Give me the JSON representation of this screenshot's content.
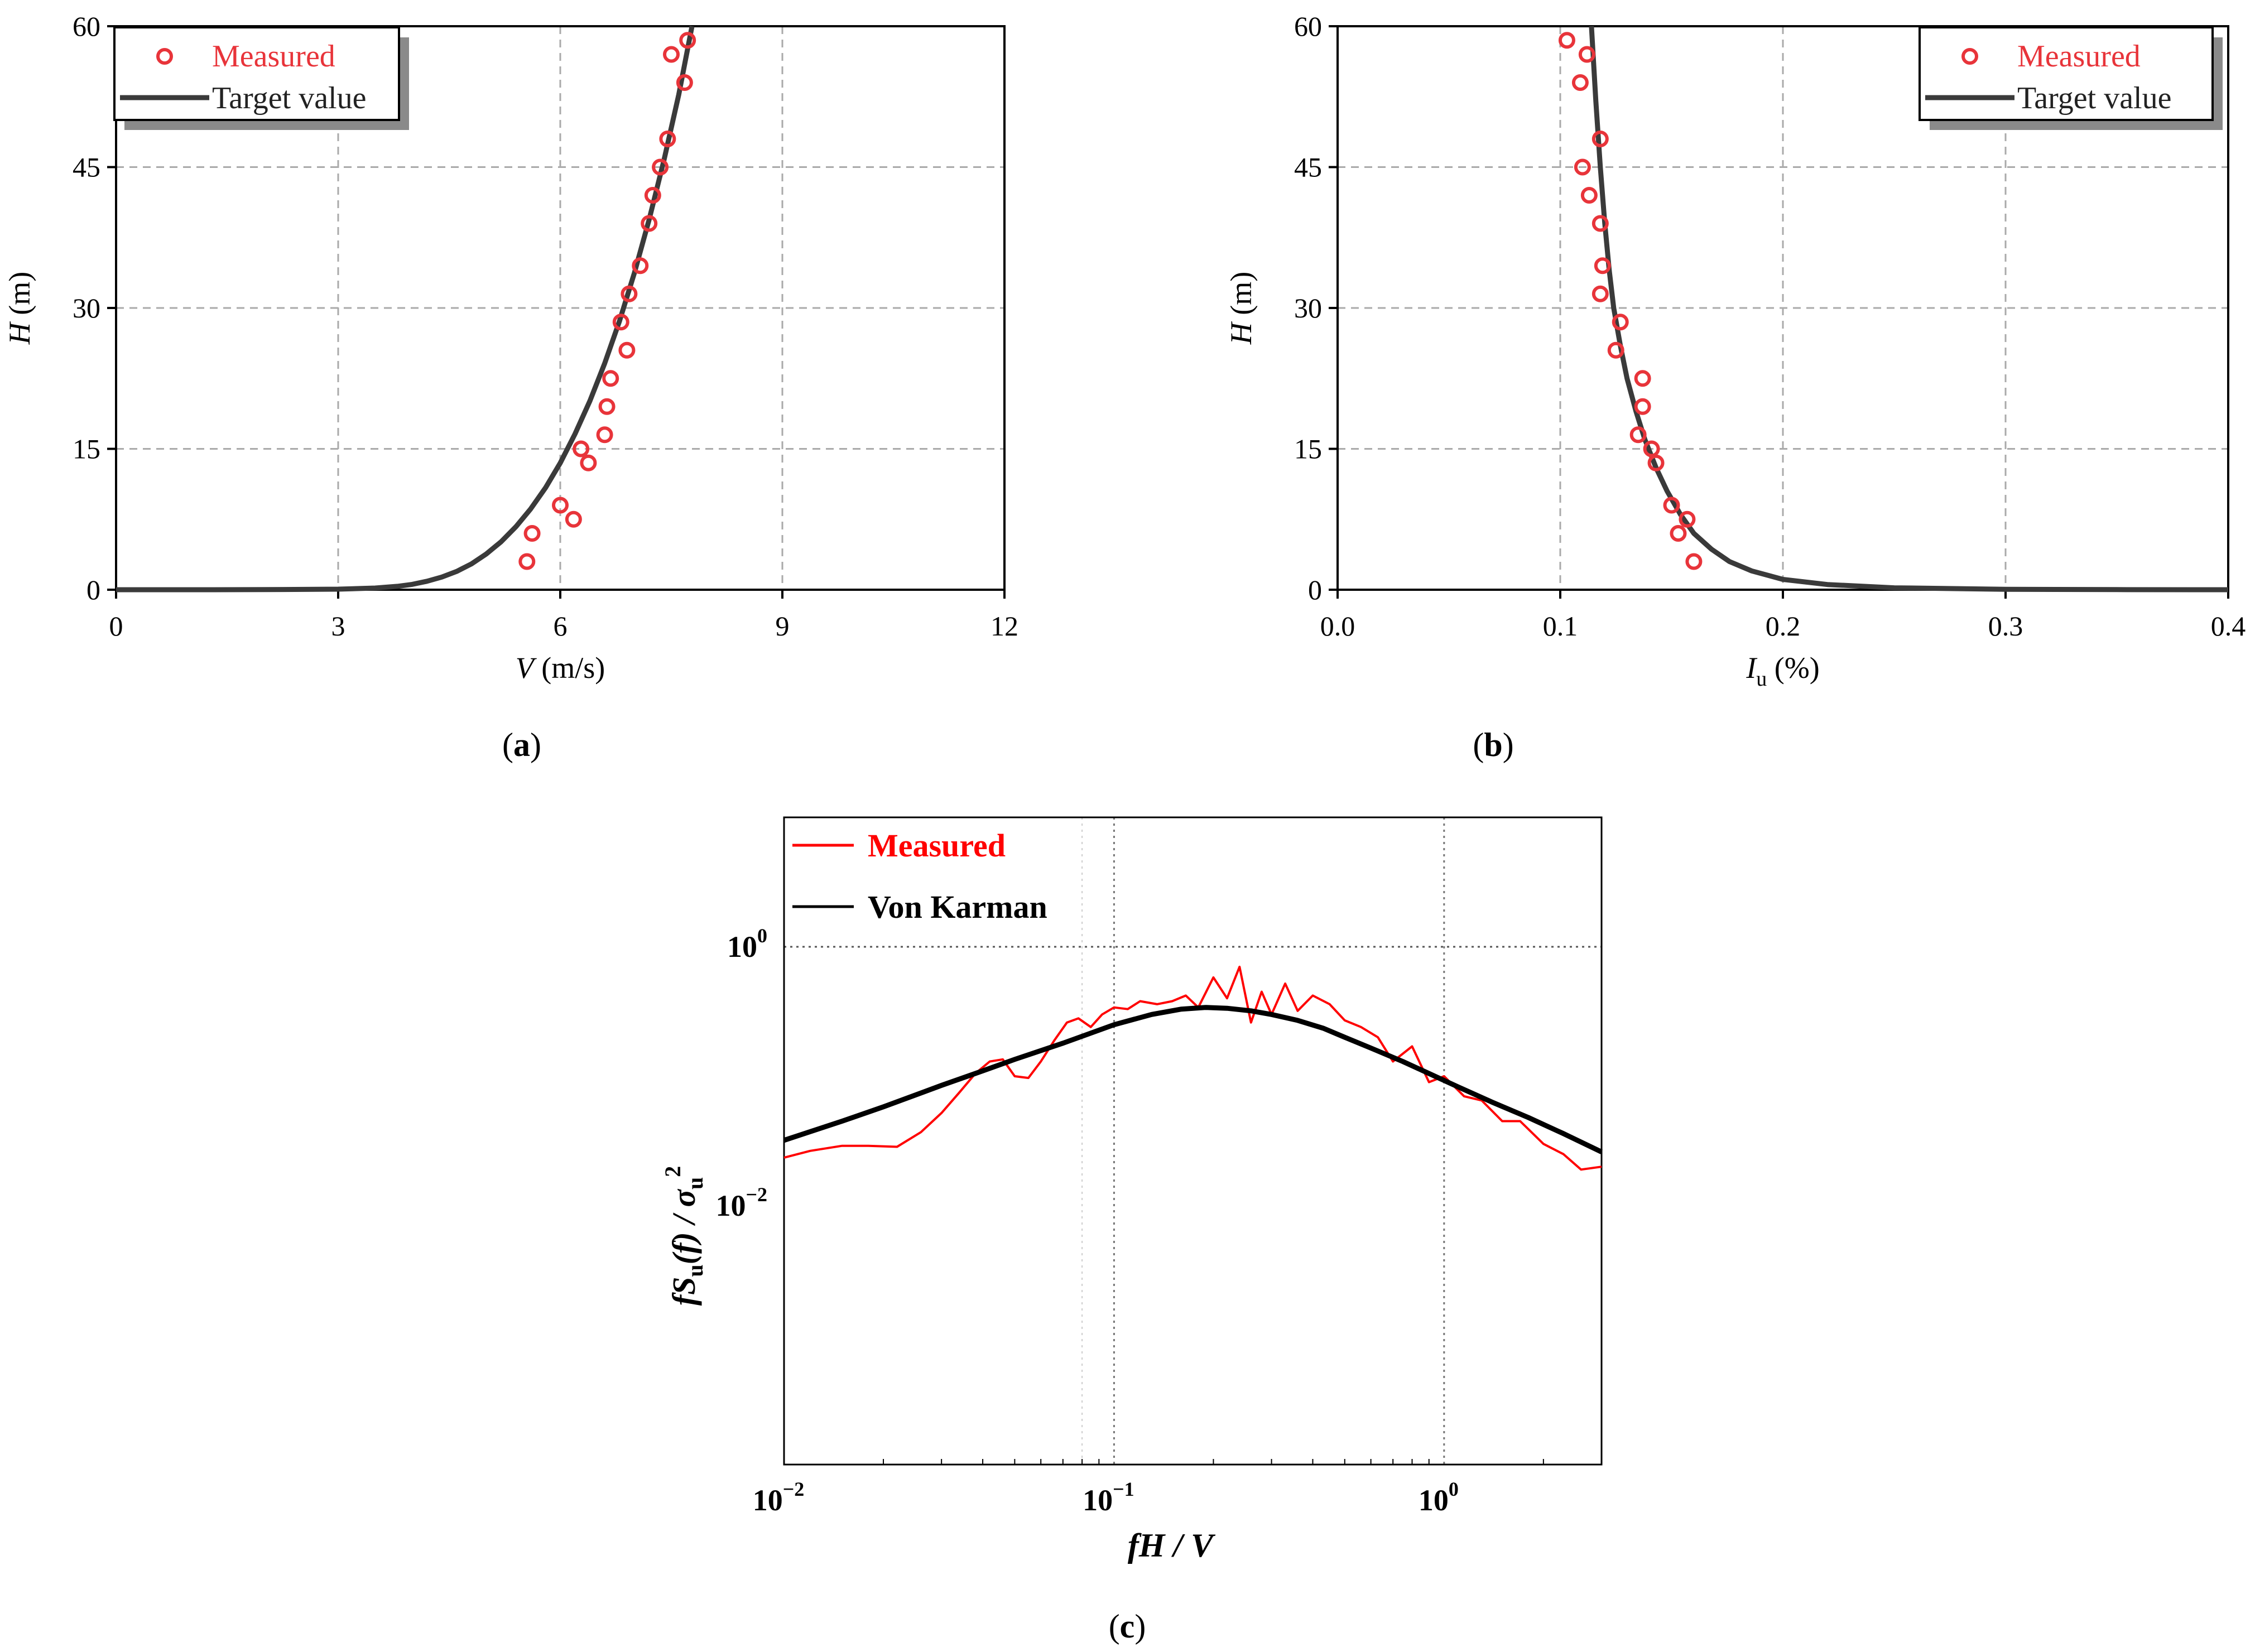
{
  "colors": {
    "measured": "#e8343a",
    "target": "#3a3a3a",
    "measured_c": "#ff0000",
    "karman": "#000000",
    "grid": "#aaaaaa"
  },
  "chart_data": [
    {
      "id": "a",
      "type": "scatter",
      "caption": "a",
      "xlabel_main": "V",
      "xlabel_rest": " (m/s)",
      "ylabel_main": "H",
      "ylabel_rest": " (m)",
      "xlim": [
        0,
        12
      ],
      "ylim": [
        0,
        60
      ],
      "xticks": [
        0,
        3,
        6,
        9,
        12
      ],
      "xtick_labels": [
        "0",
        "3",
        "6",
        "9",
        "12"
      ],
      "yticks": [
        0,
        15,
        30,
        45,
        60
      ],
      "ytick_labels": [
        "0",
        "15",
        "30",
        "45",
        "60"
      ],
      "grid": true,
      "legend": [
        "Measured",
        "Target value"
      ],
      "legend_position": "top-left",
      "series": [
        {
          "name": "Measured",
          "kind": "markers",
          "x": [
            5.55,
            5.62,
            6.0,
            6.18,
            6.28,
            6.38,
            6.6,
            6.63,
            6.68,
            6.82,
            6.9,
            6.93,
            7.08,
            7.2,
            7.25,
            7.35,
            7.45,
            7.5,
            7.68,
            7.72
          ],
          "y": [
            3.0,
            6.0,
            9.0,
            7.5,
            15.0,
            13.5,
            16.5,
            19.5,
            22.5,
            28.5,
            25.5,
            31.5,
            34.5,
            39.0,
            42.0,
            45.0,
            48.0,
            57.0,
            54.0,
            58.5
          ]
        },
        {
          "name": "Target value",
          "kind": "line",
          "x": [
            0.0,
            1.0,
            2.0,
            3.0,
            3.5,
            3.8,
            4.0,
            4.2,
            4.4,
            4.6,
            4.8,
            5.0,
            5.2,
            5.4,
            5.6,
            5.8,
            6.0,
            6.2,
            6.4,
            6.6,
            6.8,
            7.0,
            7.2,
            7.4,
            7.6,
            7.78
          ],
          "y": [
            0.0,
            0.0,
            0.01,
            0.06,
            0.18,
            0.36,
            0.57,
            0.9,
            1.35,
            1.95,
            2.75,
            3.8,
            5.1,
            6.7,
            8.6,
            10.85,
            13.5,
            16.6,
            20.1,
            24.1,
            28.6,
            33.7,
            39.4,
            45.7,
            52.7,
            60.0
          ]
        }
      ]
    },
    {
      "id": "b",
      "type": "scatter",
      "caption": "b",
      "xlabel_main": "I",
      "xlabel_sub": "u",
      "xlabel_rest": " (%)",
      "ylabel_main": "H",
      "ylabel_rest": " (m)",
      "xlim": [
        0.0,
        0.4
      ],
      "ylim": [
        0,
        60
      ],
      "xticks": [
        0.0,
        0.1,
        0.2,
        0.3,
        0.4
      ],
      "xtick_labels": [
        "0.0",
        "0.1",
        "0.2",
        "0.3",
        "0.4"
      ],
      "yticks": [
        0,
        15,
        30,
        45,
        60
      ],
      "ytick_labels": [
        "0",
        "15",
        "30",
        "45",
        "60"
      ],
      "grid": true,
      "legend": [
        "Measured",
        "Target value"
      ],
      "legend_position": "top-right",
      "series": [
        {
          "name": "Measured",
          "kind": "markers",
          "x": [
            0.103,
            0.112,
            0.109,
            0.118,
            0.11,
            0.113,
            0.118,
            0.119,
            0.118,
            0.127,
            0.125,
            0.137,
            0.137,
            0.135,
            0.141,
            0.143,
            0.15,
            0.157,
            0.153,
            0.16
          ],
          "y": [
            58.5,
            57.0,
            54.0,
            48.0,
            45.0,
            42.0,
            39.0,
            34.5,
            31.5,
            28.5,
            25.5,
            22.5,
            19.5,
            16.5,
            15.0,
            13.5,
            9.0,
            7.5,
            6.0,
            3.0
          ]
        },
        {
          "name": "Target value",
          "kind": "line",
          "x": [
            0.114,
            0.116,
            0.118,
            0.12,
            0.122,
            0.124,
            0.127,
            0.13,
            0.134,
            0.138,
            0.143,
            0.148,
            0.154,
            0.16,
            0.168,
            0.176,
            0.186,
            0.2,
            0.22,
            0.25,
            0.3,
            0.35,
            0.4
          ],
          "y": [
            60.0,
            52.0,
            45.0,
            39.0,
            34.0,
            30.0,
            26.0,
            22.5,
            19.0,
            16.0,
            13.0,
            10.5,
            8.0,
            6.0,
            4.3,
            3.0,
            2.0,
            1.1,
            0.55,
            0.2,
            0.05,
            0.01,
            0.0
          ]
        }
      ]
    },
    {
      "id": "c",
      "type": "line",
      "caption": "c",
      "xlabel": "fH / V",
      "ylabel_parts": [
        "fS",
        "u",
        "(f) / σ",
        "u",
        "2"
      ],
      "xscale": "log",
      "yscale": "log",
      "xlim": [
        0.01,
        3.0
      ],
      "ylim": [
        0.0001,
        10.0
      ],
      "xticks_exp": [
        -2,
        -1,
        0
      ],
      "xtick_base": [
        "10",
        "10",
        "10"
      ],
      "xtick_exponent_labels": [
        "−2",
        "−1",
        "0"
      ],
      "yticks_exp": [
        -2,
        0
      ],
      "ytick_base": [
        "10",
        "10"
      ],
      "ytick_exponent_labels": [
        "−2",
        "0"
      ],
      "grid": true,
      "legend": [
        "Measured",
        "Von Karman"
      ],
      "legend_position": "top-left",
      "series": [
        {
          "name": "Measured",
          "kind": "line",
          "x": [
            0.01,
            0.012,
            0.015,
            0.018,
            0.022,
            0.026,
            0.03,
            0.034,
            0.038,
            0.042,
            0.046,
            0.05,
            0.055,
            0.06,
            0.066,
            0.072,
            0.078,
            0.085,
            0.092,
            0.1,
            0.11,
            0.12,
            0.135,
            0.15,
            0.165,
            0.18,
            0.2,
            0.22,
            0.24,
            0.26,
            0.28,
            0.3,
            0.33,
            0.36,
            0.4,
            0.45,
            0.5,
            0.56,
            0.63,
            0.7,
            0.8,
            0.9,
            1.0,
            1.15,
            1.3,
            1.5,
            1.7,
            2.0,
            2.3,
            2.6,
            3.0
          ],
          "y": [
            0.0235,
            0.0265,
            0.029,
            0.029,
            0.0285,
            0.037,
            0.052,
            0.075,
            0.105,
            0.13,
            0.135,
            0.1,
            0.097,
            0.13,
            0.19,
            0.26,
            0.28,
            0.24,
            0.3,
            0.34,
            0.33,
            0.38,
            0.36,
            0.38,
            0.42,
            0.34,
            0.58,
            0.4,
            0.7,
            0.26,
            0.45,
            0.3,
            0.52,
            0.32,
            0.42,
            0.36,
            0.27,
            0.24,
            0.2,
            0.13,
            0.17,
            0.09,
            0.1,
            0.07,
            0.065,
            0.045,
            0.045,
            0.03,
            0.025,
            0.019,
            0.02
          ]
        },
        {
          "name": "Von Karman",
          "kind": "line",
          "x": [
            0.01,
            0.015,
            0.02,
            0.03,
            0.04,
            0.05,
            0.07,
            0.1,
            0.13,
            0.16,
            0.19,
            0.22,
            0.26,
            0.3,
            0.36,
            0.43,
            0.5,
            0.6,
            0.75,
            0.9,
            1.1,
            1.4,
            1.8,
            2.3,
            3.0
          ],
          "y": [
            0.032,
            0.045,
            0.058,
            0.085,
            0.11,
            0.135,
            0.18,
            0.25,
            0.3,
            0.33,
            0.34,
            0.335,
            0.32,
            0.3,
            0.27,
            0.235,
            0.2,
            0.165,
            0.13,
            0.105,
            0.083,
            0.063,
            0.048,
            0.036,
            0.026
          ]
        }
      ]
    }
  ]
}
